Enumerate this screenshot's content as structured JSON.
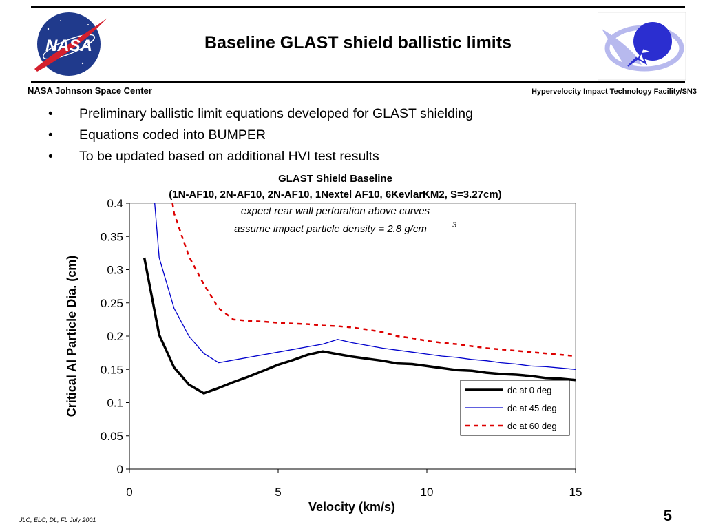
{
  "slide": {
    "title": "Baseline GLAST shield ballistic limits",
    "org_left": "NASA Johnson Space Center",
    "org_right": "Hypervelocity Impact Technology Facility/SN3",
    "bullets": [
      "Preliminary ballistic limit equations developed for GLAST shielding",
      "Equations coded into BUMPER",
      "To be updated based on additional HVI test results"
    ],
    "bullet_symbol": "•",
    "footer_left": "JLC, ELC, DL, FL    July 2001",
    "page_number": "5",
    "nasa_logo_text": "NASA"
  },
  "chart_data": {
    "type": "line",
    "title": "GLAST Shield Baseline",
    "subtitle": "(1N-AF10, 2N-AF10, 2N-AF10, 1Nextel AF10, 6KevlarKM2, S=3.27cm)",
    "annotations": [
      "expect rear wall perforation above curves",
      "assume impact particle density = 2.8 g/cm",
      "3"
    ],
    "xlabel": "Velocity (km/s)",
    "ylabel": "Critical Al Particle Dia. (cm)",
    "xlim": [
      0,
      15
    ],
    "ylim": [
      0,
      0.4
    ],
    "xticks": [
      "0",
      "5",
      "10",
      "15"
    ],
    "yticks": [
      "0",
      "0.05",
      "0.1",
      "0.15",
      "0.2",
      "0.25",
      "0.3",
      "0.35",
      "0.4"
    ],
    "grid": false,
    "legend_position": "bottom-right",
    "series": [
      {
        "name": "dc at 0 deg",
        "color": "#000000",
        "style": "solid-thick",
        "x": [
          0.5,
          1.0,
          1.5,
          2.0,
          2.5,
          3.0,
          3.5,
          4.0,
          4.5,
          5.0,
          5.5,
          6.0,
          6.5,
          7.0,
          7.5,
          8.0,
          8.5,
          9.0,
          9.5,
          10.0,
          10.5,
          11.0,
          11.5,
          12.0,
          12.5,
          13.0,
          13.5,
          14.0,
          14.5,
          15.0
        ],
        "y": [
          0.318,
          0.202,
          0.153,
          0.127,
          0.114,
          0.122,
          0.131,
          0.139,
          0.148,
          0.157,
          0.164,
          0.172,
          0.177,
          0.173,
          0.169,
          0.166,
          0.163,
          0.159,
          0.158,
          0.155,
          0.152,
          0.149,
          0.148,
          0.145,
          0.143,
          0.142,
          0.14,
          0.137,
          0.136,
          0.134
        ]
      },
      {
        "name": "dc at 45 deg",
        "color": "#0000cc",
        "style": "solid-thin",
        "x": [
          0.85,
          1.0,
          1.5,
          2.0,
          2.5,
          3.0,
          3.5,
          4.0,
          4.5,
          5.0,
          5.5,
          6.0,
          6.5,
          7.0,
          7.5,
          8.0,
          8.5,
          9.0,
          9.5,
          10.0,
          10.5,
          11.0,
          11.5,
          12.0,
          12.5,
          13.0,
          13.5,
          14.0,
          14.5,
          15.0
        ],
        "y": [
          0.4,
          0.318,
          0.242,
          0.2,
          0.174,
          0.16,
          0.164,
          0.168,
          0.172,
          0.176,
          0.18,
          0.184,
          0.188,
          0.195,
          0.19,
          0.186,
          0.182,
          0.179,
          0.176,
          0.173,
          0.17,
          0.168,
          0.165,
          0.163,
          0.16,
          0.158,
          0.155,
          0.154,
          0.152,
          0.15
        ]
      },
      {
        "name": "dc at 60 deg",
        "color": "#dd0000",
        "style": "dashed",
        "x": [
          1.45,
          1.5,
          2.0,
          2.5,
          3.0,
          3.5,
          4.0,
          4.5,
          5.0,
          5.5,
          6.0,
          6.5,
          7.0,
          7.5,
          8.0,
          8.5,
          9.0,
          9.5,
          10.0,
          10.5,
          11.0,
          11.5,
          12.0,
          12.5,
          13.0,
          13.5,
          14.0,
          14.5,
          15.0
        ],
        "y": [
          0.4,
          0.385,
          0.32,
          0.278,
          0.242,
          0.225,
          0.223,
          0.222,
          0.22,
          0.219,
          0.218,
          0.216,
          0.215,
          0.213,
          0.21,
          0.206,
          0.2,
          0.197,
          0.193,
          0.19,
          0.188,
          0.185,
          0.182,
          0.18,
          0.178,
          0.176,
          0.174,
          0.172,
          0.17
        ]
      }
    ]
  }
}
